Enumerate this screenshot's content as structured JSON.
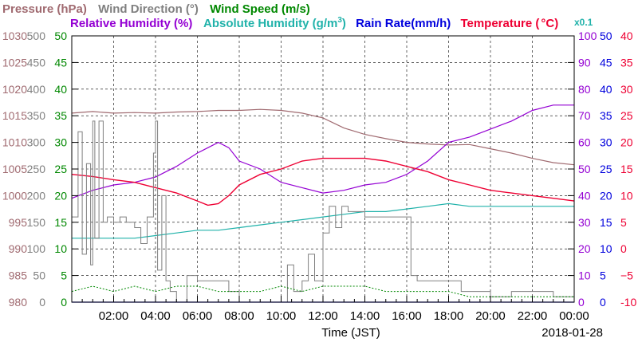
{
  "chart_data": {
    "type": "line",
    "date": "2018-01-28",
    "xlabel": "Time (JST)",
    "xlim": [
      "00:00",
      "24:00"
    ],
    "x_ticks": [
      "02:00",
      "04:00",
      "06:00",
      "08:00",
      "10:00",
      "12:00",
      "14:00",
      "16:00",
      "18:00",
      "20:00",
      "22:00",
      "00:00"
    ],
    "grid": true,
    "legend": "top",
    "axes": {
      "pressure": {
        "label": "Pressure (hPa)",
        "color": "#a06a70",
        "range": [
          980,
          1030
        ],
        "ticks": [
          "980",
          "985",
          "990",
          "995",
          "1000",
          "1005",
          "1010",
          "1015",
          "1020",
          "1025",
          "1030"
        ]
      },
      "wind_dir": {
        "label": "Wind Direction (°)",
        "color": "#808080",
        "range": [
          0,
          500
        ],
        "ticks": [
          "0",
          "50",
          "100",
          "150",
          "200",
          "250",
          "300",
          "350",
          "400",
          "450",
          "500"
        ]
      },
      "wind_speed": {
        "label": "Wind Speed (m/s)",
        "color": "#008800",
        "range": [
          0,
          50
        ],
        "ticks": [
          "0",
          "5",
          "10",
          "15",
          "20",
          "25",
          "30",
          "35",
          "40",
          "45",
          "50"
        ]
      },
      "rh": {
        "label": "Relative Humidity (%)",
        "color": "#9400d3",
        "range": [
          0,
          100
        ],
        "ticks": [
          "0",
          "10",
          "20",
          "30",
          "40",
          "50",
          "60",
          "70",
          "80",
          "90",
          "100"
        ]
      },
      "abs_hum": {
        "label": "Absolute Humidity (g/m³)",
        "label_main": "Absolute Humidity (g/m",
        "label_sup": "3",
        "label_end": ")",
        "color": "#20b2aa",
        "range": [
          0,
          100
        ],
        "scale_note": "x0.1"
      },
      "rain": {
        "label": "Rain Rate(mm/h)",
        "color": "#0000dd",
        "range": [
          0,
          50
        ],
        "ticks": [
          "0",
          "5",
          "10",
          "15",
          "20",
          "25",
          "30",
          "35",
          "40",
          "45",
          "50"
        ]
      },
      "temp": {
        "label": "Temperature (°C)",
        "label_main": "Temperature (",
        "label_deg": "°C",
        "label_end": ")",
        "color": "#ee0033",
        "range": [
          -10,
          40
        ],
        "ticks": [
          "-10",
          "−5",
          "0",
          "5",
          "10",
          "15",
          "20",
          "25",
          "30",
          "35",
          "40"
        ]
      }
    },
    "series": [
      {
        "name": "Pressure (hPa)",
        "axis": "pressure",
        "x": [
          0,
          1,
          2,
          3,
          4,
          5,
          6,
          7,
          8,
          9,
          10,
          11,
          12,
          13,
          14,
          15,
          16,
          17,
          18,
          19,
          20,
          21,
          22,
          23,
          24
        ],
        "values": [
          1015.5,
          1015.8,
          1015.5,
          1015.6,
          1015.5,
          1015.7,
          1015.8,
          1016.0,
          1016.0,
          1016.2,
          1016.0,
          1015.5,
          1014.6,
          1012.7,
          1011.5,
          1010.7,
          1010.0,
          1009.7,
          1009.5,
          1009.6,
          1008.8,
          1008.0,
          1007.0,
          1006.2,
          1005.8
        ]
      },
      {
        "name": "Relative Humidity (%)",
        "axis": "rh",
        "x": [
          0,
          1,
          2,
          3,
          4,
          5,
          6,
          6.5,
          7,
          7.5,
          8,
          9,
          10,
          11,
          12,
          13,
          14,
          15,
          16,
          17,
          18,
          19,
          20,
          21,
          22,
          23,
          24
        ],
        "values": [
          39,
          42,
          44,
          45,
          47,
          51,
          56,
          58,
          60,
          58,
          53,
          50,
          45,
          43,
          41,
          42,
          44,
          45,
          48,
          53,
          60,
          62,
          65,
          68,
          72,
          74,
          74
        ]
      },
      {
        "name": "Absolute Humidity (g/m³)",
        "axis": "abs_hum",
        "x": [
          0,
          1,
          2,
          3,
          4,
          5,
          6,
          7,
          8,
          9,
          10,
          11,
          12,
          13,
          14,
          15,
          16,
          17,
          18,
          19,
          20,
          21,
          22,
          23,
          24
        ],
        "values": [
          24,
          24,
          24,
          24,
          25,
          26,
          27,
          27,
          28,
          29,
          30,
          31,
          32,
          33,
          34,
          34,
          35,
          36,
          37,
          36,
          36,
          36,
          36,
          36,
          36
        ]
      },
      {
        "name": "Temperature (°C)",
        "axis": "temp",
        "x": [
          0,
          1,
          2,
          3,
          4,
          5,
          6,
          6.5,
          7,
          7.5,
          8,
          9,
          10,
          11,
          12,
          13,
          14,
          15,
          16,
          17,
          18,
          19,
          20,
          21,
          22,
          23,
          24
        ],
        "values": [
          14,
          13.6,
          13,
          12.5,
          11.5,
          10.5,
          9,
          8.2,
          8.5,
          10,
          12,
          14,
          15,
          16.5,
          17,
          17,
          17,
          16.5,
          15.5,
          14.5,
          13,
          12,
          11,
          10.5,
          10,
          9.5,
          9
        ]
      },
      {
        "name": "Wind Direction (°)",
        "axis": "wind_dir",
        "x": [
          0,
          0.3,
          0.5,
          0.7,
          0.9,
          1.0,
          1.1,
          1.3,
          1.5,
          1.7,
          2.0,
          2.3,
          2.6,
          3.0,
          3.3,
          3.6,
          3.9,
          4.0,
          4.1,
          4.3,
          4.5,
          4.7,
          5.0,
          5.5,
          6.0,
          6.5,
          7.0,
          7.5,
          8.0,
          9.0,
          9.4,
          9.8,
          10.0,
          10.3,
          10.6,
          11.0,
          11.3,
          11.6,
          12.0,
          12.3,
          12.6,
          12.9,
          13.2,
          14.0,
          15.0,
          15.6,
          15.9,
          16.2,
          16.5,
          17.0,
          17.3,
          17.6,
          18.0,
          18.6,
          19.0,
          19.4,
          19.8,
          20.0,
          20.4,
          20.8,
          21.0,
          21.5,
          22.0,
          22.4,
          22.8,
          23.0,
          23.5,
          24
        ],
        "values": [
          160,
          320,
          90,
          260,
          70,
          340,
          120,
          340,
          150,
          160,
          150,
          160,
          150,
          140,
          110,
          160,
          280,
          340,
          60,
          200,
          40,
          20,
          0,
          50,
          40,
          40,
          40,
          20,
          0,
          0,
          0,
          0,
          0,
          70,
          20,
          40,
          90,
          40,
          130,
          180,
          140,
          180,
          170,
          160,
          160,
          160,
          160,
          50,
          40,
          40,
          40,
          40,
          40,
          20,
          20,
          20,
          20,
          10,
          10,
          10,
          20,
          20,
          20,
          20,
          20,
          10,
          10,
          10
        ]
      },
      {
        "name": "Wind Speed (m/s)",
        "axis": "wind_speed",
        "x": [
          0,
          1,
          2,
          3,
          4,
          5,
          6,
          7,
          8,
          9,
          10,
          11,
          12,
          13,
          14,
          15,
          16,
          17,
          18,
          19,
          20,
          21,
          22,
          23,
          24
        ],
        "values": [
          2,
          3,
          2,
          3,
          2,
          3,
          3,
          2,
          2,
          2,
          3,
          2,
          3,
          3,
          3,
          2,
          2,
          2,
          2,
          1,
          1,
          1,
          1,
          1,
          1
        ]
      },
      {
        "name": "Rain Rate(mm/h)",
        "axis": "rain",
        "x": [
          0,
          24
        ],
        "values": [
          0,
          0
        ]
      }
    ]
  }
}
